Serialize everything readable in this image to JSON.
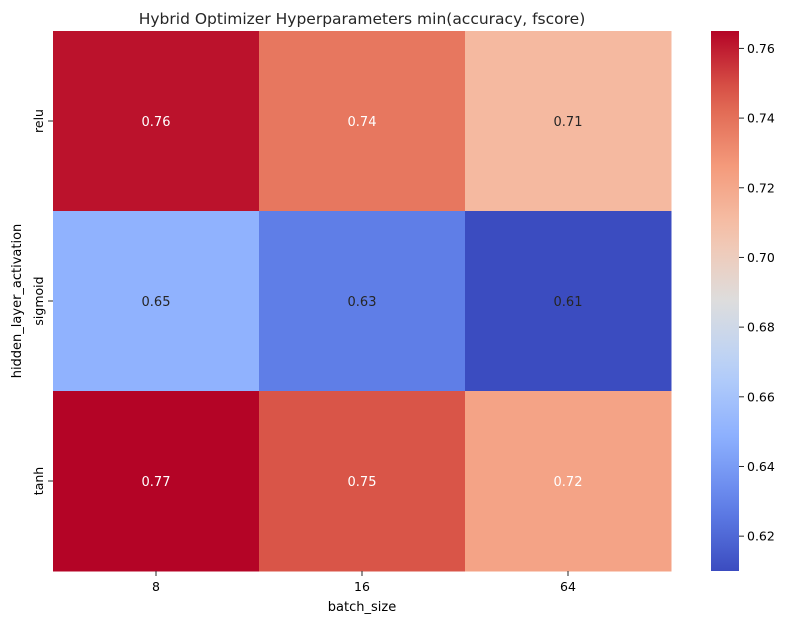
{
  "chart_data": {
    "type": "heatmap",
    "title": "Hybrid Optimizer Hyperparameters min(accuracy, fscore)",
    "xlabel": "batch_size",
    "ylabel": "hidden_layer_activation",
    "x_categories": [
      "8",
      "16",
      "64"
    ],
    "y_categories": [
      "relu",
      "sigmoid",
      "tanh"
    ],
    "values": [
      [
        0.762,
        0.738,
        0.712
      ],
      [
        0.65,
        0.628,
        0.61
      ],
      [
        0.765,
        0.748,
        0.722
      ]
    ],
    "annotations": [
      [
        "0.76",
        "0.74",
        "0.71"
      ],
      [
        "0.65",
        "0.63",
        "0.61"
      ],
      [
        "0.77",
        "0.75",
        "0.72"
      ]
    ],
    "colormap": "coolwarm",
    "colorbar": {
      "range": [
        0.61,
        0.765
      ],
      "ticks": [
        "0.62",
        "0.64",
        "0.66",
        "0.68",
        "0.70",
        "0.72",
        "0.74",
        "0.76"
      ]
    }
  }
}
